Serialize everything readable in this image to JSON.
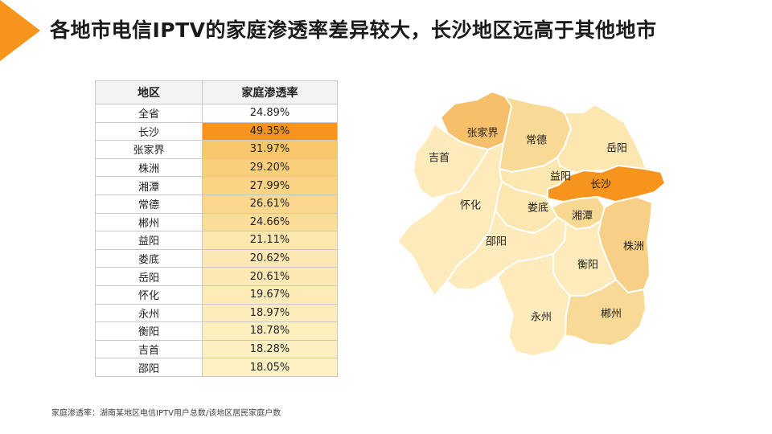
{
  "slide_title": "各地市电信IPTV的家庭渗透率差异较大，长沙地区远高于其他地市",
  "table": {
    "headers": [
      "地区",
      "家庭渗透率"
    ],
    "rows": [
      {
        "region": "全省",
        "rate": "24.89%",
        "value": 24.89
      },
      {
        "region": "长沙",
        "rate": "49.35%",
        "value": 49.35
      },
      {
        "region": "张家界",
        "rate": "31.97%",
        "value": 31.97
      },
      {
        "region": "株洲",
        "rate": "29.20%",
        "value": 29.2
      },
      {
        "region": "湘潭",
        "rate": "27.99%",
        "value": 27.99
      },
      {
        "region": "常德",
        "rate": "26.61%",
        "value": 26.61
      },
      {
        "region": "郴州",
        "rate": "24.66%",
        "value": 24.66
      },
      {
        "region": "益阳",
        "rate": "21.11%",
        "value": 21.11
      },
      {
        "region": "娄底",
        "rate": "20.62%",
        "value": 20.62
      },
      {
        "region": "岳阳",
        "rate": "20.61%",
        "value": 20.61
      },
      {
        "region": "怀化",
        "rate": "19.67%",
        "value": 19.67
      },
      {
        "region": "永州",
        "rate": "18.97%",
        "value": 18.97
      },
      {
        "region": "衡阳",
        "rate": "18.78%",
        "value": 18.78
      },
      {
        "region": "吉首",
        "rate": "18.28%",
        "value": 18.28
      },
      {
        "region": "邵阳",
        "rate": "18.05%",
        "value": 18.05
      }
    ]
  },
  "map_labels": {
    "zhangjiajie": "张家界",
    "changde": "常德",
    "yueyang": "岳阳",
    "jishou": "吉首",
    "yiyang": "益阳",
    "changsha": "长沙",
    "huaihua": "怀化",
    "loudi": "娄底",
    "xiangtan": "湘潭",
    "shaoyang": "邵阳",
    "zhuzhou": "株洲",
    "hengyang": "衡阳",
    "yongzhou": "永州",
    "chenzhou": "郴州"
  },
  "footnote": "家庭渗透率：湖南某地区电信IPTV用户总数/该地区居民家庭户数",
  "colors": {
    "accent": "#f7941d",
    "highlight_row": "#f7941d",
    "changsha": "#f7941d",
    "zhangjiajie": "#f6c06a",
    "zhuzhou": "#f8cf86",
    "xiangtan": "#f9d892",
    "changde": "#f9d996",
    "chenzhou": "#f9d996",
    "light": "#fde7b0",
    "lightest": "#fdebbb"
  }
}
